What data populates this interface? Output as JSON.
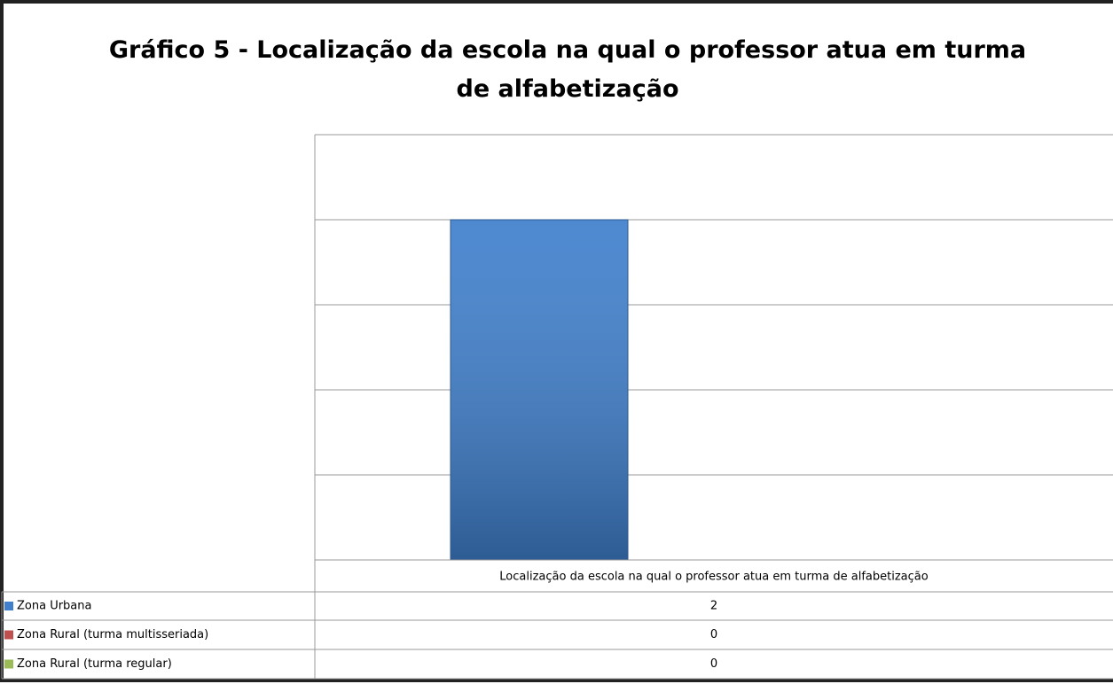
{
  "chart_data": {
    "type": "bar",
    "title": "Gráfico 5 - Localização da escola na qual o professor atua em turma de alfabetização",
    "categories": [
      "Localização da escola na qual o professor atua em turma de alfabetização"
    ],
    "series": [
      {
        "name": "Zona Urbana",
        "color": "#3f7fcc",
        "values": [
          2
        ]
      },
      {
        "name": "Zona Rural (turma multisseriada)",
        "color": "#c0504d",
        "values": [
          0
        ]
      },
      {
        "name": "Zona Rural (turma regular)",
        "color": "#9bbb59",
        "values": [
          0
        ]
      }
    ],
    "ylim": [
      0,
      2.5
    ],
    "yticks": [
      0,
      0.5,
      1,
      1.5,
      2,
      2.5
    ],
    "grid": true
  }
}
